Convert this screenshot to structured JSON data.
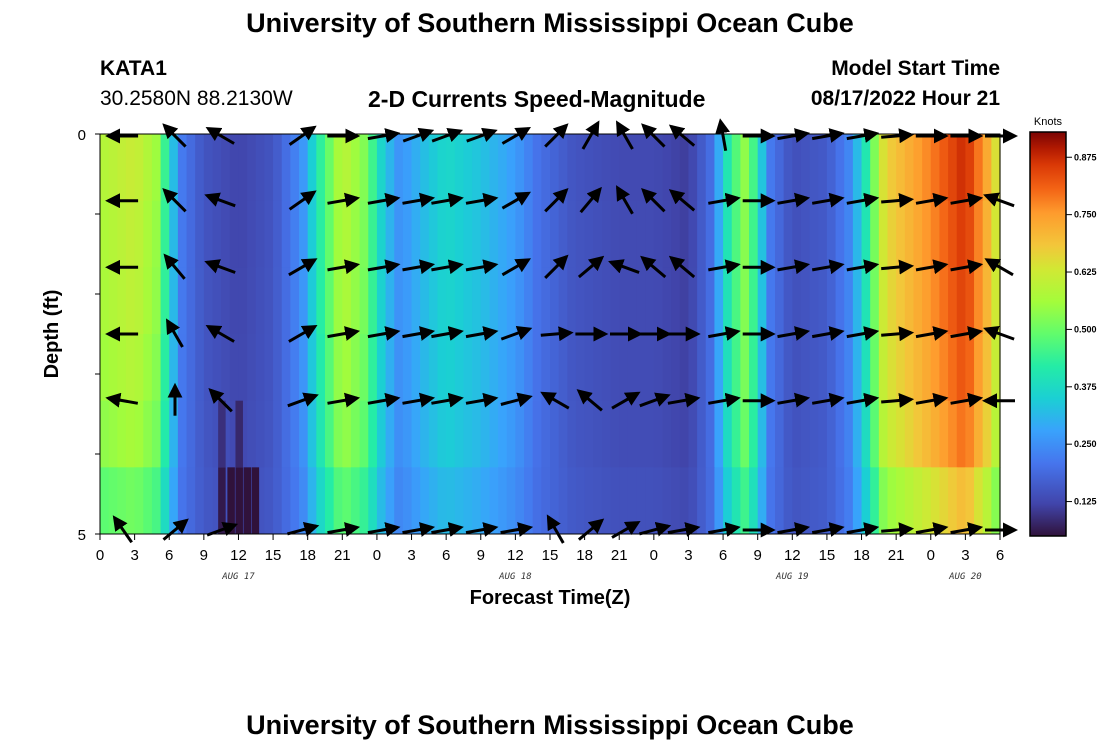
{
  "page_title": "University of Southern Mississippi Ocean Cube",
  "footer_title": "University of Southern Mississippi Ocean Cube",
  "station": {
    "id": "KATA1",
    "coords": "30.2580N  88.2130W"
  },
  "model": {
    "label": "Model Start Time",
    "start": "08/17/2022 Hour 21"
  },
  "chart_data": {
    "type": "heatmap",
    "title": "2-D Currents Speed-Magnitude",
    "xlabel": "Forecast Time(Z)",
    "ylabel": "Depth (ft)",
    "ylim": [
      0,
      5
    ],
    "y_ticks": [
      "0",
      "5"
    ],
    "x_ticks": [
      "0",
      "3",
      "6",
      "9",
      "12",
      "15",
      "18",
      "21",
      "0",
      "3",
      "6",
      "9",
      "12",
      "15",
      "18",
      "21",
      "0",
      "3",
      "6",
      "9",
      "12",
      "15",
      "18",
      "21",
      "0",
      "3",
      "6"
    ],
    "day_labels": [
      {
        "label": "AUG 17",
        "hour": 12
      },
      {
        "label": "AUG 18",
        "hour": 36
      },
      {
        "label": "AUG 19",
        "hour": 60
      },
      {
        "label": "AUG 20",
        "hour": 75
      }
    ],
    "hours": [
      0,
      78
    ],
    "colorbar": {
      "label": "Knots",
      "min": 0.05,
      "max": 0.93,
      "ticks": [
        "0.125",
        "0.250",
        "0.375",
        "0.500",
        "0.625",
        "0.750",
        "0.875"
      ]
    },
    "speed_profile": [
      {
        "hour": 0,
        "speed": 0.58
      },
      {
        "hour": 3,
        "speed": 0.62
      },
      {
        "hour": 5,
        "speed": 0.55
      },
      {
        "hour": 6,
        "speed": 0.38
      },
      {
        "hour": 7,
        "speed": 0.22
      },
      {
        "hour": 9,
        "speed": 0.15
      },
      {
        "hour": 12,
        "speed": 0.12
      },
      {
        "hour": 15,
        "speed": 0.15
      },
      {
        "hour": 17.5,
        "speed": 0.25
      },
      {
        "hour": 19,
        "speed": 0.42
      },
      {
        "hour": 21,
        "speed": 0.6
      },
      {
        "hour": 23,
        "speed": 0.52
      },
      {
        "hour": 24.5,
        "speed": 0.35
      },
      {
        "hour": 26,
        "speed": 0.25
      },
      {
        "hour": 28,
        "speed": 0.32
      },
      {
        "hour": 30,
        "speed": 0.37
      },
      {
        "hour": 33,
        "speed": 0.33
      },
      {
        "hour": 36,
        "speed": 0.27
      },
      {
        "hour": 38,
        "speed": 0.2
      },
      {
        "hour": 41,
        "speed": 0.15
      },
      {
        "hour": 45,
        "speed": 0.13
      },
      {
        "hour": 48,
        "speed": 0.13
      },
      {
        "hour": 51,
        "speed": 0.11
      },
      {
        "hour": 53,
        "speed": 0.2
      },
      {
        "hour": 54.5,
        "speed": 0.42
      },
      {
        "hour": 56,
        "speed": 0.55
      },
      {
        "hour": 57,
        "speed": 0.4
      },
      {
        "hour": 58,
        "speed": 0.22
      },
      {
        "hour": 60,
        "speed": 0.14
      },
      {
        "hour": 63,
        "speed": 0.16
      },
      {
        "hour": 65,
        "speed": 0.24
      },
      {
        "hour": 66.5,
        "speed": 0.42
      },
      {
        "hour": 68,
        "speed": 0.66
      },
      {
        "hour": 72,
        "speed": 0.78
      },
      {
        "hour": 75,
        "speed": 0.88
      },
      {
        "hour": 77,
        "speed": 0.72
      },
      {
        "hour": 78,
        "speed": 0.6
      }
    ],
    "depth_factor": [
      1.0,
      0.95,
      0.92,
      0.85,
      0.75,
      0.45
    ],
    "special_cells": [
      {
        "hour": 10.5,
        "row": 5,
        "speed": 0.06
      },
      {
        "hour": 11.3,
        "row": 5,
        "speed": 0.05
      },
      {
        "hour": 12.0,
        "row": 5,
        "speed": 0.04
      },
      {
        "hour": 12.7,
        "row": 5,
        "speed": 0.03
      },
      {
        "hour": 13.4,
        "row": 5,
        "speed": 0.05
      },
      {
        "hour": 12.0,
        "row": 4,
        "speed": 0.08
      },
      {
        "hour": 10.5,
        "row": 4,
        "speed": 0.09
      }
    ],
    "vectors": {
      "hours": [
        2,
        6.5,
        10.5,
        17.5,
        21,
        24.5,
        27.5,
        30,
        33,
        36,
        39.5,
        42.5,
        45.5,
        48,
        50.5,
        54,
        57,
        60,
        63,
        66,
        69,
        72,
        75,
        78
      ],
      "depth_rows": [
        0,
        1,
        2,
        3,
        4,
        5
      ],
      "directions_deg": [
        [
          180,
          135,
          150,
          35,
          0,
          10,
          20,
          20,
          20,
          30,
          45,
          60,
          120,
          135,
          140,
          100,
          0,
          10,
          10,
          10,
          5,
          0,
          0,
          0
        ],
        [
          180,
          135,
          160,
          35,
          10,
          10,
          10,
          10,
          10,
          30,
          45,
          50,
          120,
          135,
          140,
          10,
          0,
          10,
          10,
          10,
          5,
          10,
          10,
          160
        ],
        [
          180,
          130,
          160,
          30,
          10,
          10,
          10,
          10,
          10,
          30,
          45,
          40,
          160,
          140,
          140,
          10,
          0,
          10,
          10,
          10,
          5,
          10,
          10,
          150
        ],
        [
          180,
          120,
          150,
          30,
          10,
          10,
          10,
          10,
          10,
          20,
          5,
          0,
          0,
          0,
          0,
          10,
          0,
          10,
          10,
          10,
          5,
          10,
          10,
          160
        ],
        [
          170,
          90,
          135,
          20,
          10,
          10,
          10,
          10,
          10,
          15,
          150,
          140,
          30,
          20,
          10,
          10,
          0,
          10,
          10,
          10,
          5,
          10,
          10,
          180
        ],
        [
          125,
          40,
          20,
          15,
          10,
          10,
          10,
          10,
          10,
          10,
          120,
          40,
          30,
          15,
          10,
          10,
          0,
          10,
          10,
          10,
          5,
          10,
          10,
          0
        ]
      ]
    }
  }
}
